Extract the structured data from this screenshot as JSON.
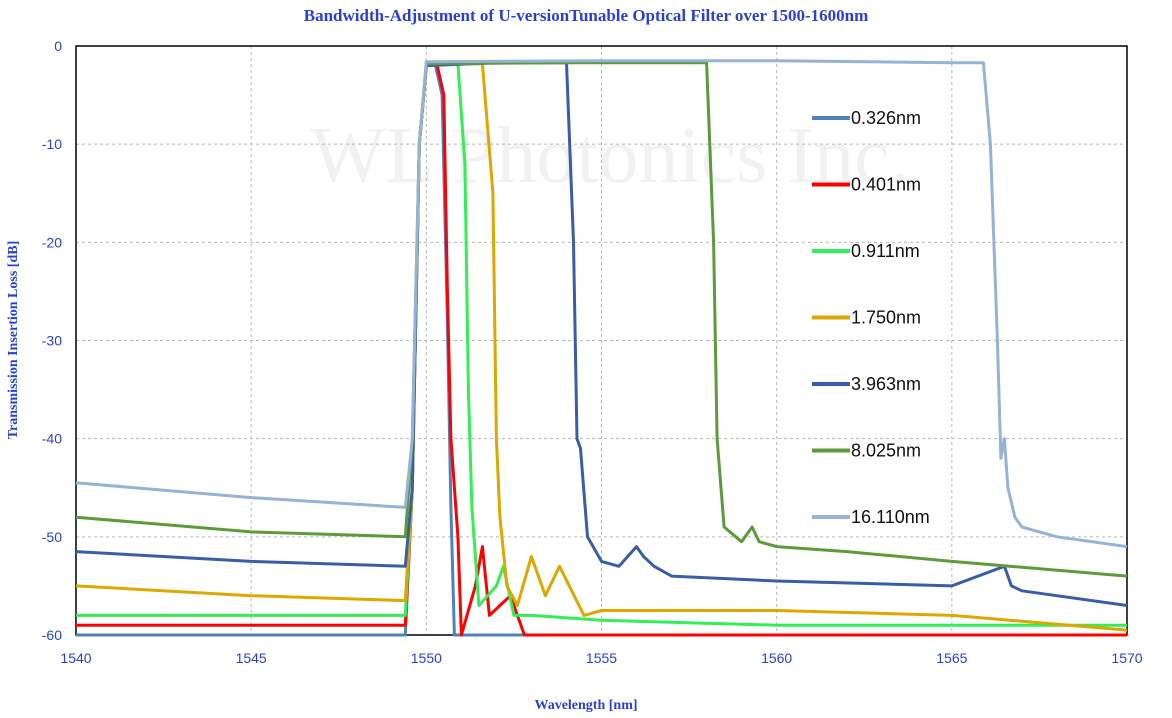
{
  "chart_data": {
    "type": "line",
    "title": "Bandwidth-Adjustment of U-versionTunable Optical Filter over 1500-1600nm",
    "xlabel": "Wavelength [nm]",
    "ylabel": "Transmission Insertion Loss [dB]",
    "xlim": [
      1540,
      1570
    ],
    "ylim": [
      -60,
      0
    ],
    "x_ticks": [
      1540,
      1545,
      1550,
      1555,
      1560,
      1565,
      1570
    ],
    "y_ticks": [
      0,
      -10,
      -20,
      -30,
      -40,
      -50,
      -60
    ],
    "grid": true,
    "legend_position": "right",
    "watermark": "WL Photonics Inc.",
    "series": [
      {
        "name": "0.326nm",
        "color": "#4f81bd",
        "x": [
          1540,
          1549.4,
          1549.6,
          1549.8,
          1550.0,
          1550.25,
          1550.45,
          1550.6,
          1550.7,
          1550.8,
          1551.0,
          1570
        ],
        "y": [
          -60,
          -60,
          -45,
          -10,
          -2,
          -1.8,
          -5,
          -28,
          -47,
          -60,
          -60,
          -60
        ]
      },
      {
        "name": "0.401nm",
        "color": "#ff0000",
        "x": [
          1540,
          1549.4,
          1549.6,
          1549.8,
          1550.0,
          1550.3,
          1550.5,
          1550.6,
          1550.7,
          1550.9,
          1551.0,
          1551.4,
          1551.6,
          1551.8,
          1552.4,
          1552.8,
          1553.2,
          1570
        ],
        "y": [
          -59,
          -59,
          -45,
          -10,
          -2,
          -1.8,
          -5,
          -25,
          -40,
          -50,
          -60,
          -55,
          -51,
          -58,
          -56,
          -60,
          -60,
          -60
        ]
      },
      {
        "name": "0.911nm",
        "color": "#33ee55",
        "x": [
          1540,
          1549.4,
          1549.6,
          1549.8,
          1550.0,
          1550.6,
          1550.9,
          1551.1,
          1551.2,
          1551.3,
          1551.5,
          1552.0,
          1552.2,
          1552.5,
          1553.0,
          1555,
          1560,
          1570
        ],
        "y": [
          -58,
          -58,
          -45,
          -10,
          -2,
          -1.8,
          -1.8,
          -12,
          -35,
          -47,
          -57,
          -55,
          -53,
          -58,
          -58,
          -58.5,
          -59,
          -59
        ]
      },
      {
        "name": "1.750nm",
        "color": "#dda700",
        "x": [
          1540,
          1545,
          1549.4,
          1549.6,
          1549.8,
          1550.0,
          1551.0,
          1551.6,
          1551.9,
          1552.0,
          1552.1,
          1552.3,
          1552.6,
          1553.0,
          1553.4,
          1553.8,
          1554.5,
          1555,
          1560,
          1565,
          1570
        ],
        "y": [
          -55,
          -56,
          -56.5,
          -45,
          -10,
          -2,
          -1.8,
          -1.8,
          -15,
          -40,
          -48,
          -55,
          -57,
          -52,
          -56,
          -53,
          -58,
          -57.5,
          -57.5,
          -58,
          -59.5
        ]
      },
      {
        "name": "3.963nm",
        "color": "#3a5da8",
        "x": [
          1540,
          1545,
          1549.4,
          1549.6,
          1549.8,
          1550.0,
          1552.0,
          1554.0,
          1554.2,
          1554.3,
          1554.4,
          1554.6,
          1555.0,
          1555.5,
          1556.0,
          1556.2,
          1556.5,
          1557,
          1560,
          1565,
          1566.5,
          1566.7,
          1567,
          1570
        ],
        "y": [
          -51.5,
          -52.5,
          -53,
          -45,
          -10,
          -2,
          -1.7,
          -1.7,
          -20,
          -40,
          -41,
          -50,
          -52.5,
          -53,
          -51,
          -52,
          -53,
          -54,
          -54.5,
          -55,
          -53,
          -55,
          -55.5,
          -57
        ]
      },
      {
        "name": "8.025nm",
        "color": "#5d9a3c",
        "x": [
          1540,
          1545,
          1549.4,
          1549.6,
          1549.8,
          1550.0,
          1554,
          1558.0,
          1558.2,
          1558.3,
          1558.5,
          1559.0,
          1559.3,
          1559.5,
          1560,
          1562,
          1565,
          1570
        ],
        "y": [
          -48,
          -49.5,
          -50,
          -40,
          -10,
          -1.8,
          -1.7,
          -1.7,
          -20,
          -40,
          -49,
          -50.5,
          -49,
          -50.5,
          -51,
          -51.5,
          -52.5,
          -54
        ]
      },
      {
        "name": "16.110nm",
        "color": "#95b3d7",
        "x": [
          1540,
          1545,
          1549.4,
          1549.6,
          1549.8,
          1550.0,
          1555,
          1560,
          1565,
          1565.9,
          1566.1,
          1566.3,
          1566.4,
          1566.5,
          1566.6,
          1566.8,
          1567.0,
          1568,
          1570
        ],
        "y": [
          -44.5,
          -46,
          -47,
          -40,
          -10,
          -1.6,
          -1.5,
          -1.5,
          -1.7,
          -1.7,
          -10,
          -30,
          -42,
          -40,
          -45,
          -48,
          -49,
          -50,
          -51
        ]
      }
    ]
  }
}
